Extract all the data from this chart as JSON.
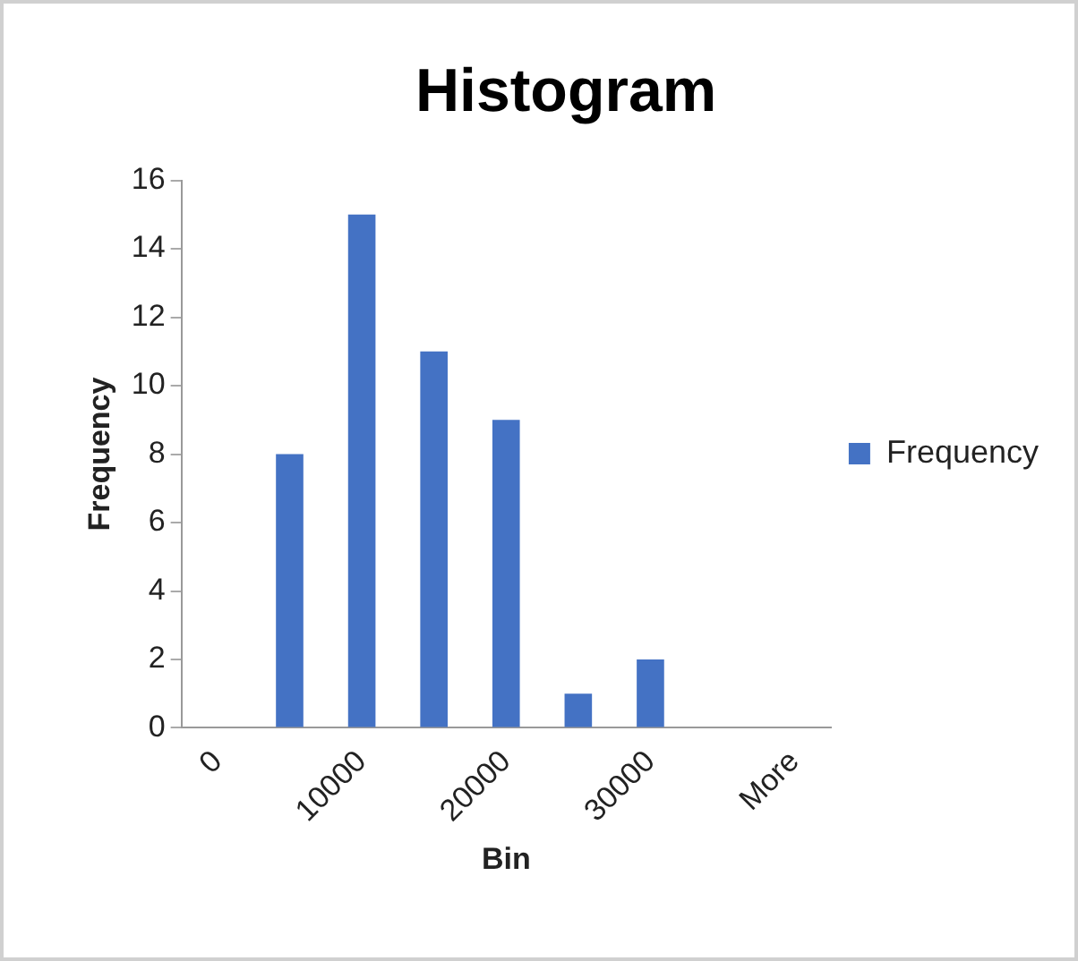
{
  "chart_data": {
    "type": "bar",
    "title": "Histogram",
    "xlabel": "Bin",
    "ylabel": "Frequency",
    "categories": [
      "0",
      null,
      "10000",
      null,
      "20000",
      null,
      "30000",
      null,
      "More"
    ],
    "series": [
      {
        "name": "Frequency",
        "color": "#4472c4",
        "values": [
          0,
          8,
          15,
          11,
          9,
          1,
          2,
          0,
          0
        ]
      }
    ],
    "ylim": [
      0,
      16
    ],
    "yticks": [
      0,
      2,
      4,
      6,
      8,
      10,
      12,
      14,
      16
    ],
    "grid": false,
    "legend": "right"
  }
}
